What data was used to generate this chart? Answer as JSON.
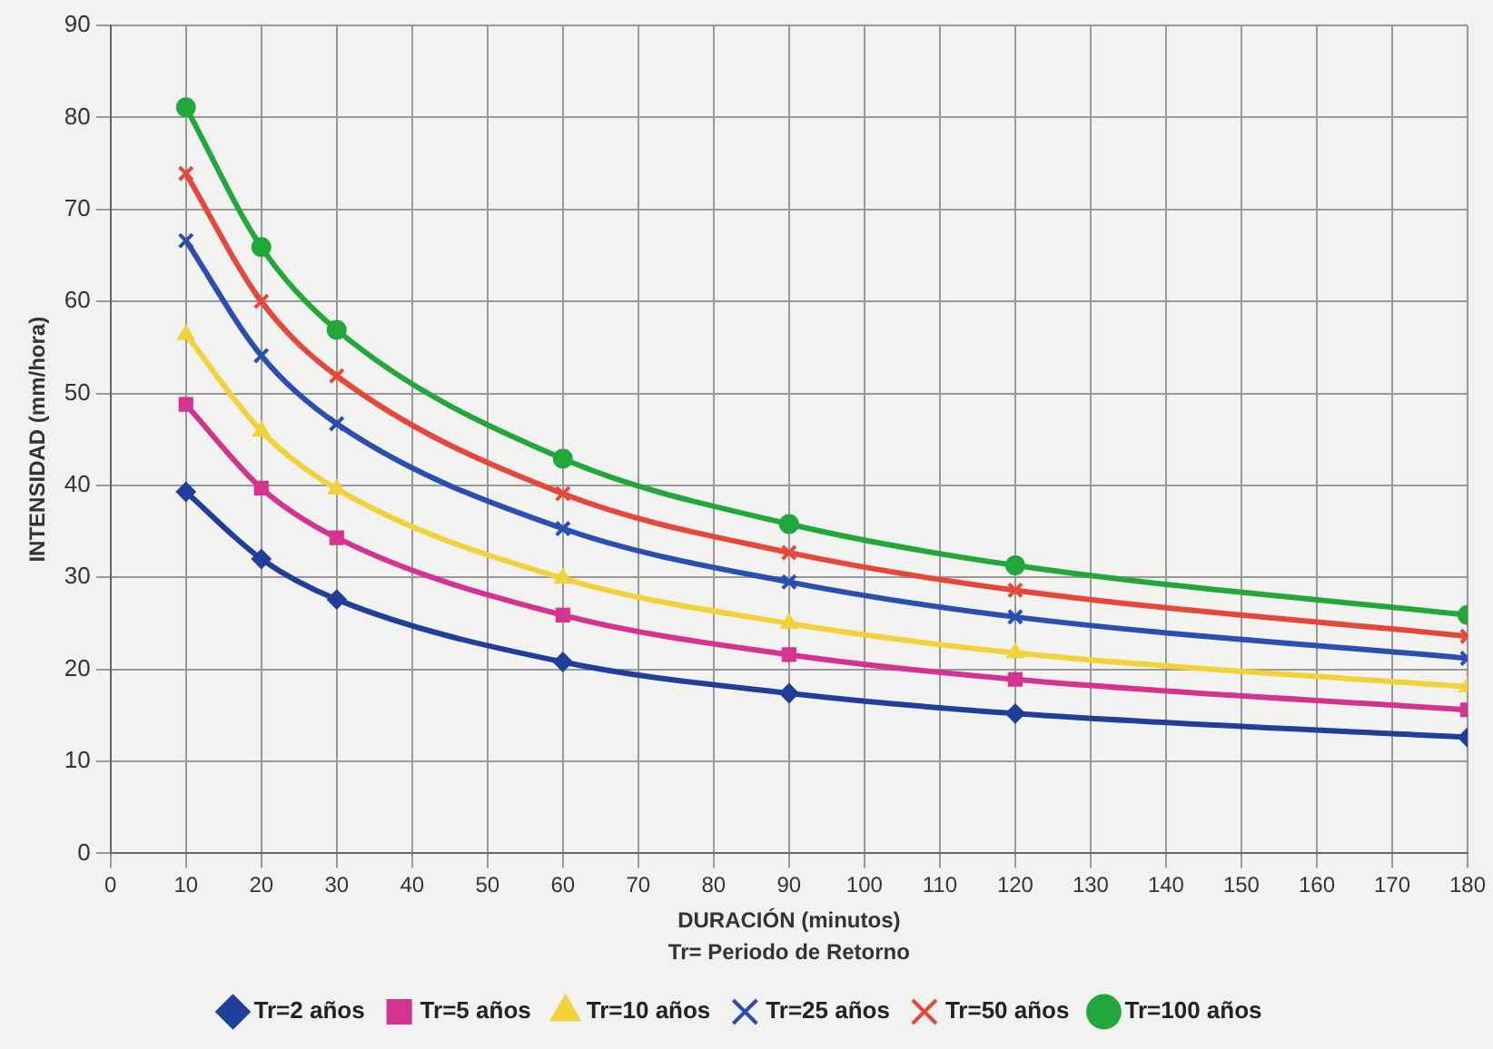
{
  "chart_data": {
    "type": "line",
    "xlabel": "DURACIÓN (minutos)",
    "ylabel": "INTENSIDAD (mm/hora)",
    "annotations": [
      "Tr= Periodo de Retorno"
    ],
    "x": [
      10,
      20,
      30,
      60,
      90,
      120,
      180
    ],
    "xlim": [
      0,
      180
    ],
    "xticks": [
      0,
      10,
      20,
      30,
      40,
      50,
      60,
      70,
      80,
      90,
      100,
      110,
      120,
      130,
      140,
      150,
      160,
      170,
      180
    ],
    "ylim": [
      0,
      90
    ],
    "yticks": [
      0,
      10,
      20,
      30,
      40,
      50,
      60,
      70,
      80,
      90
    ],
    "grid": true,
    "legend": "bottom",
    "line_style": "solid",
    "series": [
      {
        "name": "Tr=2 años",
        "color": "#1f3f9a",
        "marker": "diamond",
        "values": [
          39.3,
          32,
          27.6,
          20.8,
          17.4,
          15.2,
          12.6
        ]
      },
      {
        "name": "Tr=5 años",
        "color": "#d4338f",
        "marker": "square",
        "values": [
          48.8,
          39.7,
          34.3,
          25.9,
          21.6,
          18.9,
          15.6
        ]
      },
      {
        "name": "Tr=10 años",
        "color": "#f2d23a",
        "marker": "triangle",
        "values": [
          56.4,
          45.9,
          39.6,
          29.9,
          25.0,
          21.8,
          18.1
        ]
      },
      {
        "name": "Tr=25 años",
        "color": "#2a4fb0",
        "marker": "cross",
        "values": [
          66.6,
          54.1,
          46.7,
          35.3,
          29.5,
          25.7,
          21.2
        ]
      },
      {
        "name": "Tr=50 años",
        "color": "#e5483a",
        "marker": "cross",
        "values": [
          73.9,
          60.0,
          51.9,
          39.1,
          32.7,
          28.6,
          23.6
        ]
      },
      {
        "name": "Tr=100 años",
        "color": "#22a83a",
        "marker": "circle",
        "values": [
          81.1,
          65.9,
          56.9,
          42.9,
          35.8,
          31.3,
          25.9
        ]
      }
    ]
  }
}
